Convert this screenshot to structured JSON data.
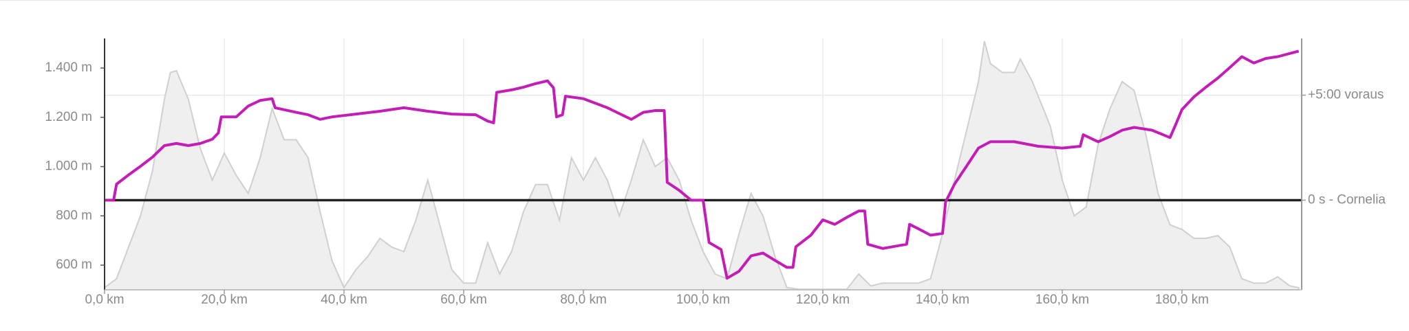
{
  "chart_data": {
    "type": "line",
    "xlim": [
      0,
      200
    ],
    "ylim": [
      500,
      1520
    ],
    "y2lim": [
      -256,
      462
    ],
    "xticks": [
      {
        "value": 0,
        "label": "0,0 km"
      },
      {
        "value": 20,
        "label": "20,0 km"
      },
      {
        "value": 40,
        "label": "40,0 km"
      },
      {
        "value": 60,
        "label": "60,0 km"
      },
      {
        "value": 80,
        "label": "80,0 km"
      },
      {
        "value": 100,
        "label": "100,0 km"
      },
      {
        "value": 120,
        "label": "120,0 km"
      },
      {
        "value": 140,
        "label": "140,0 km"
      },
      {
        "value": 160,
        "label": "160,0 km"
      },
      {
        "value": 180,
        "label": "180,0 km"
      }
    ],
    "yticks": [
      {
        "value": 600,
        "label": "600 m"
      },
      {
        "value": 800,
        "label": "800 m"
      },
      {
        "value": 1000,
        "label": "1.000 m"
      },
      {
        "value": 1200,
        "label": "1.200 m"
      },
      {
        "value": 1400,
        "label": "1.400 m"
      }
    ],
    "y2ticks": [
      {
        "value": 0,
        "label": "0 s - Cornelia"
      },
      {
        "value": 300,
        "label": "+5:00 voraus"
      }
    ],
    "grid": true,
    "series": [
      {
        "type": "area",
        "color": "#cfcfcf",
        "fill": "#efefef",
        "x": [
          0,
          2,
          4,
          6,
          8,
          10,
          11,
          12,
          14,
          16,
          18,
          20,
          22,
          24,
          26,
          28,
          30,
          32,
          34,
          36,
          38,
          40,
          42,
          44,
          46,
          48,
          50,
          52,
          54,
          56,
          58,
          60,
          62,
          64,
          66,
          68,
          70,
          72,
          74,
          76,
          78,
          80,
          82,
          84,
          86,
          88,
          90,
          92,
          94,
          96,
          98,
          100,
          102,
          104,
          106,
          108,
          110,
          112,
          114,
          116,
          120,
          124,
          126,
          128,
          130,
          136,
          138,
          140,
          142,
          144,
          146,
          147,
          148,
          150,
          152,
          153,
          155,
          158,
          160,
          162,
          164,
          166,
          168,
          170,
          172,
          174,
          176,
          178,
          180,
          182,
          184,
          186,
          188,
          190,
          192,
          194,
          196,
          198,
          199.5
        ],
        "values": [
          509,
          545,
          673,
          800,
          982,
          1273,
          1382,
          1389,
          1273,
          1073,
          945,
          1055,
          964,
          891,
          1036,
          1236,
          1109,
          1109,
          1036,
          818,
          618,
          509,
          582,
          636,
          709,
          673,
          655,
          782,
          945,
          764,
          582,
          527,
          527,
          691,
          564,
          655,
          818,
          927,
          927,
          782,
          1036,
          945,
          1036,
          945,
          800,
          945,
          1109,
          1000,
          1036,
          945,
          782,
          655,
          564,
          545,
          727,
          891,
          800,
          636,
          509,
          502,
          502,
          502,
          564,
          516,
          527,
          527,
          545,
          727,
          945,
          1145,
          1345,
          1509,
          1418,
          1382,
          1382,
          1436,
          1345,
          1164,
          945,
          800,
          836,
          1091,
          1236,
          1345,
          1309,
          1127,
          891,
          764,
          745,
          709,
          709,
          720,
          673,
          545,
          527,
          527,
          553,
          516,
          509
        ]
      },
      {
        "type": "line",
        "axis": "y2",
        "color": "#c41cb6",
        "x": [
          0,
          1.5,
          2,
          4,
          6,
          8,
          10,
          12,
          14,
          16,
          18,
          19,
          19.5,
          22,
          24,
          26,
          28,
          28.5,
          32,
          34,
          36,
          38,
          42,
          46,
          50,
          54,
          58,
          62,
          64,
          65,
          65.5,
          68,
          70,
          72,
          74,
          75,
          75.5,
          76.5,
          77,
          80,
          84,
          88,
          90,
          92,
          93.5,
          94,
          96,
          98,
          100,
          101,
          103,
          104,
          106,
          108,
          110,
          112,
          114,
          115,
          115.5,
          118,
          120,
          122,
          124,
          126,
          127,
          127.5,
          130,
          134,
          134.5,
          136,
          138,
          140,
          140.5,
          142,
          144,
          146,
          148,
          152,
          156,
          160,
          163,
          163.5,
          166,
          168,
          170,
          172,
          175,
          178,
          179,
          180,
          182,
          184,
          186,
          188,
          190,
          192,
          194,
          196,
          199.5
        ],
        "values": [
          0,
          0,
          46,
          72,
          97,
          123,
          156,
          162,
          156,
          162,
          174,
          192,
          238,
          238,
          269,
          285,
          290,
          264,
          251,
          244,
          231,
          238,
          246,
          254,
          264,
          254,
          246,
          244,
          226,
          221,
          308,
          315,
          323,
          333,
          341,
          321,
          238,
          244,
          297,
          290,
          264,
          231,
          251,
          256,
          256,
          51,
          28,
          0,
          0,
          -121,
          -141,
          -223,
          -203,
          -159,
          -151,
          -172,
          -192,
          -192,
          -133,
          -100,
          -56,
          -69,
          -49,
          -31,
          -31,
          -126,
          -138,
          -126,
          -69,
          -82,
          -100,
          -95,
          -5,
          46,
          97,
          149,
          167,
          167,
          154,
          149,
          154,
          187,
          167,
          182,
          200,
          208,
          200,
          179,
          218,
          259,
          295,
          323,
          349,
          379,
          410,
          392,
          405,
          410,
          426
        ]
      }
    ]
  }
}
